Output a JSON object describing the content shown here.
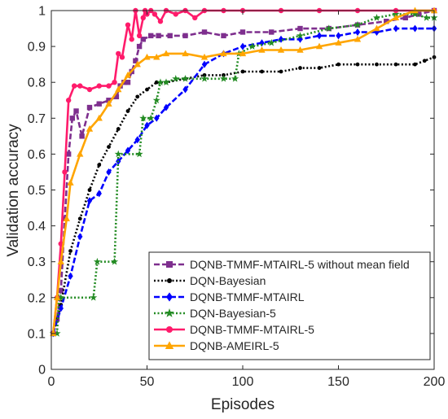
{
  "chart_data": {
    "type": "line",
    "title": "",
    "xlabel": "Episodes",
    "ylabel": "Validation accuracy",
    "xlim": [
      0,
      200
    ],
    "ylim": [
      0,
      1
    ],
    "xticks": [
      0,
      50,
      100,
      150,
      200
    ],
    "yticks": [
      0,
      0.1,
      0.2,
      0.3,
      0.4,
      0.5,
      0.6,
      0.7,
      0.8,
      0.9,
      1
    ],
    "grid": false,
    "legend_position": "bottom-right",
    "series": [
      {
        "name": "DQNB-TMMF-MTAIRL-5 without mean field",
        "color": "#7E2F8E",
        "line_style": "dashed",
        "marker": "square",
        "x": [
          1,
          3,
          5,
          7,
          9,
          11,
          13,
          16,
          20,
          25,
          30,
          34,
          36,
          38,
          40,
          42,
          44,
          46,
          48,
          52,
          56,
          62,
          70,
          80,
          90,
          100,
          115,
          130,
          145,
          160,
          175,
          185,
          192,
          200
        ],
        "y": [
          0.1,
          0.14,
          0.22,
          0.42,
          0.6,
          0.7,
          0.72,
          0.65,
          0.73,
          0.74,
          0.75,
          0.76,
          0.79,
          0.8,
          0.8,
          0.83,
          0.86,
          0.9,
          0.92,
          0.93,
          0.93,
          0.93,
          0.93,
          0.94,
          0.93,
          0.94,
          0.94,
          0.95,
          0.95,
          0.96,
          0.97,
          0.98,
          0.99,
          1.0
        ]
      },
      {
        "name": "DQN-Bayesian",
        "color": "#000000",
        "line_style": "dotted",
        "marker": "dot",
        "x": [
          1,
          5,
          10,
          15,
          20,
          25,
          30,
          35,
          40,
          45,
          50,
          55,
          60,
          70,
          80,
          90,
          100,
          110,
          120,
          130,
          140,
          150,
          160,
          170,
          180,
          190,
          195,
          200
        ],
        "y": [
          0.1,
          0.18,
          0.33,
          0.42,
          0.5,
          0.57,
          0.62,
          0.67,
          0.72,
          0.76,
          0.78,
          0.8,
          0.8,
          0.81,
          0.82,
          0.82,
          0.83,
          0.83,
          0.83,
          0.84,
          0.84,
          0.85,
          0.85,
          0.85,
          0.85,
          0.85,
          0.86,
          0.87
        ]
      },
      {
        "name": "DQNB-TMMF-MTAIRL",
        "color": "#0000FF",
        "line_style": "dashed",
        "marker": "diamond",
        "x": [
          1,
          5,
          10,
          15,
          20,
          25,
          30,
          35,
          40,
          45,
          50,
          55,
          60,
          70,
          80,
          90,
          100,
          110,
          120,
          130,
          140,
          150,
          160,
          170,
          180,
          190,
          200
        ],
        "y": [
          0.1,
          0.17,
          0.26,
          0.37,
          0.47,
          0.49,
          0.55,
          0.58,
          0.61,
          0.64,
          0.68,
          0.7,
          0.73,
          0.78,
          0.85,
          0.88,
          0.9,
          0.91,
          0.92,
          0.92,
          0.93,
          0.93,
          0.94,
          0.94,
          0.95,
          0.95,
          0.95
        ]
      },
      {
        "name": "DQN-Bayesian-5",
        "color": "#228B22",
        "line_style": "dotted",
        "marker": "star",
        "x": [
          1,
          3,
          4,
          5,
          22,
          24,
          33,
          35,
          46,
          48,
          52,
          55,
          57,
          60,
          65,
          70,
          80,
          90,
          96,
          98,
          105,
          115,
          130,
          145,
          160,
          170,
          180,
          190,
          196,
          200
        ],
        "y": [
          0.1,
          0.1,
          0.2,
          0.2,
          0.2,
          0.3,
          0.3,
          0.6,
          0.6,
          0.7,
          0.7,
          0.75,
          0.8,
          0.8,
          0.81,
          0.81,
          0.81,
          0.81,
          0.81,
          0.88,
          0.9,
          0.91,
          0.93,
          0.95,
          0.96,
          0.98,
          0.99,
          0.99,
          0.98,
          0.98
        ]
      },
      {
        "name": "DQNB-TMMF-MTAIRL-5",
        "color": "#FF1B6B",
        "line_style": "solid",
        "marker": "circle",
        "x": [
          1,
          3,
          5,
          7,
          9,
          12,
          15,
          20,
          25,
          30,
          33,
          35,
          37,
          40,
          42,
          44,
          46,
          48,
          49,
          50,
          52,
          54,
          57,
          60,
          65,
          70,
          75,
          80,
          90,
          100,
          120,
          140,
          160,
          180,
          200
        ],
        "y": [
          0.1,
          0.2,
          0.35,
          0.55,
          0.75,
          0.79,
          0.79,
          0.78,
          0.79,
          0.79,
          0.8,
          0.88,
          0.87,
          0.96,
          0.92,
          1.0,
          0.93,
          0.98,
          1.0,
          0.99,
          1.0,
          0.99,
          0.97,
          1.0,
          0.99,
          1.0,
          0.98,
          1.0,
          1.0,
          1.0,
          1.0,
          1.0,
          1.0,
          1.0,
          1.0
        ]
      },
      {
        "name": "DQNB-AMEIRL-5",
        "color": "#FFA500",
        "line_style": "solid",
        "marker": "triangle",
        "x": [
          1,
          3,
          5,
          8,
          10,
          15,
          20,
          25,
          30,
          35,
          40,
          45,
          50,
          55,
          60,
          70,
          80,
          90,
          100,
          110,
          120,
          130,
          140,
          150,
          160,
          170,
          180,
          190,
          200
        ],
        "y": [
          0.1,
          0.2,
          0.3,
          0.42,
          0.52,
          0.6,
          0.67,
          0.7,
          0.74,
          0.78,
          0.82,
          0.85,
          0.87,
          0.87,
          0.88,
          0.88,
          0.87,
          0.88,
          0.88,
          0.89,
          0.89,
          0.89,
          0.9,
          0.91,
          0.92,
          0.95,
          0.98,
          1.0,
          1.0
        ]
      }
    ]
  }
}
